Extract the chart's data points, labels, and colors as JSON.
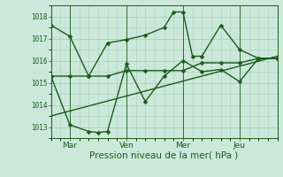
{
  "background_color": "#cce8da",
  "grid_color": "#aacfbe",
  "line_color": "#1a5c1a",
  "xlabel": "Pression niveau de la mer( hPa )",
  "xlabel_fontsize": 7.5,
  "xlabel_color": "#1a5c1a",
  "ylim": [
    1012.5,
    1018.5
  ],
  "yticks": [
    1013,
    1014,
    1015,
    1016,
    1017,
    1018
  ],
  "xtick_labels": [
    "Mar",
    "Ven",
    "Mer",
    "Jeu"
  ],
  "xtick_positions": [
    1,
    4,
    7,
    10
  ],
  "vline_positions": [
    1,
    4,
    7,
    10
  ],
  "xlim": [
    0,
    12
  ],
  "series1": {
    "x": [
      0,
      1,
      2,
      3,
      4,
      5,
      6,
      7,
      8,
      9,
      10,
      11,
      12
    ],
    "y": [
      1015.3,
      1015.3,
      1015.3,
      1015.3,
      1015.55,
      1015.55,
      1015.55,
      1015.55,
      1015.9,
      1015.9,
      1015.9,
      1016.1,
      1016.1
    ]
  },
  "series2": {
    "x": [
      0,
      1,
      2,
      3,
      4,
      5,
      6,
      6.5,
      7,
      7.5,
      8,
      9,
      10,
      11,
      12
    ],
    "y": [
      1017.6,
      1017.1,
      1015.3,
      1016.8,
      1016.95,
      1017.15,
      1017.5,
      1018.2,
      1018.2,
      1016.2,
      1016.2,
      1017.6,
      1016.5,
      1016.1,
      1016.1
    ]
  },
  "series3": {
    "x": [
      0,
      1,
      2,
      2.5,
      3,
      4,
      5,
      6,
      7,
      8,
      9,
      10,
      11,
      12
    ],
    "y": [
      1015.3,
      1013.1,
      1012.8,
      1012.75,
      1012.8,
      1015.85,
      1014.15,
      1015.3,
      1016.0,
      1015.5,
      1015.6,
      1015.05,
      1016.1,
      1016.1
    ]
  },
  "trend": {
    "x": [
      0,
      12
    ],
    "y": [
      1013.5,
      1016.2
    ]
  },
  "marker": "D",
  "markersize": 2.5,
  "linewidth": 1.0
}
